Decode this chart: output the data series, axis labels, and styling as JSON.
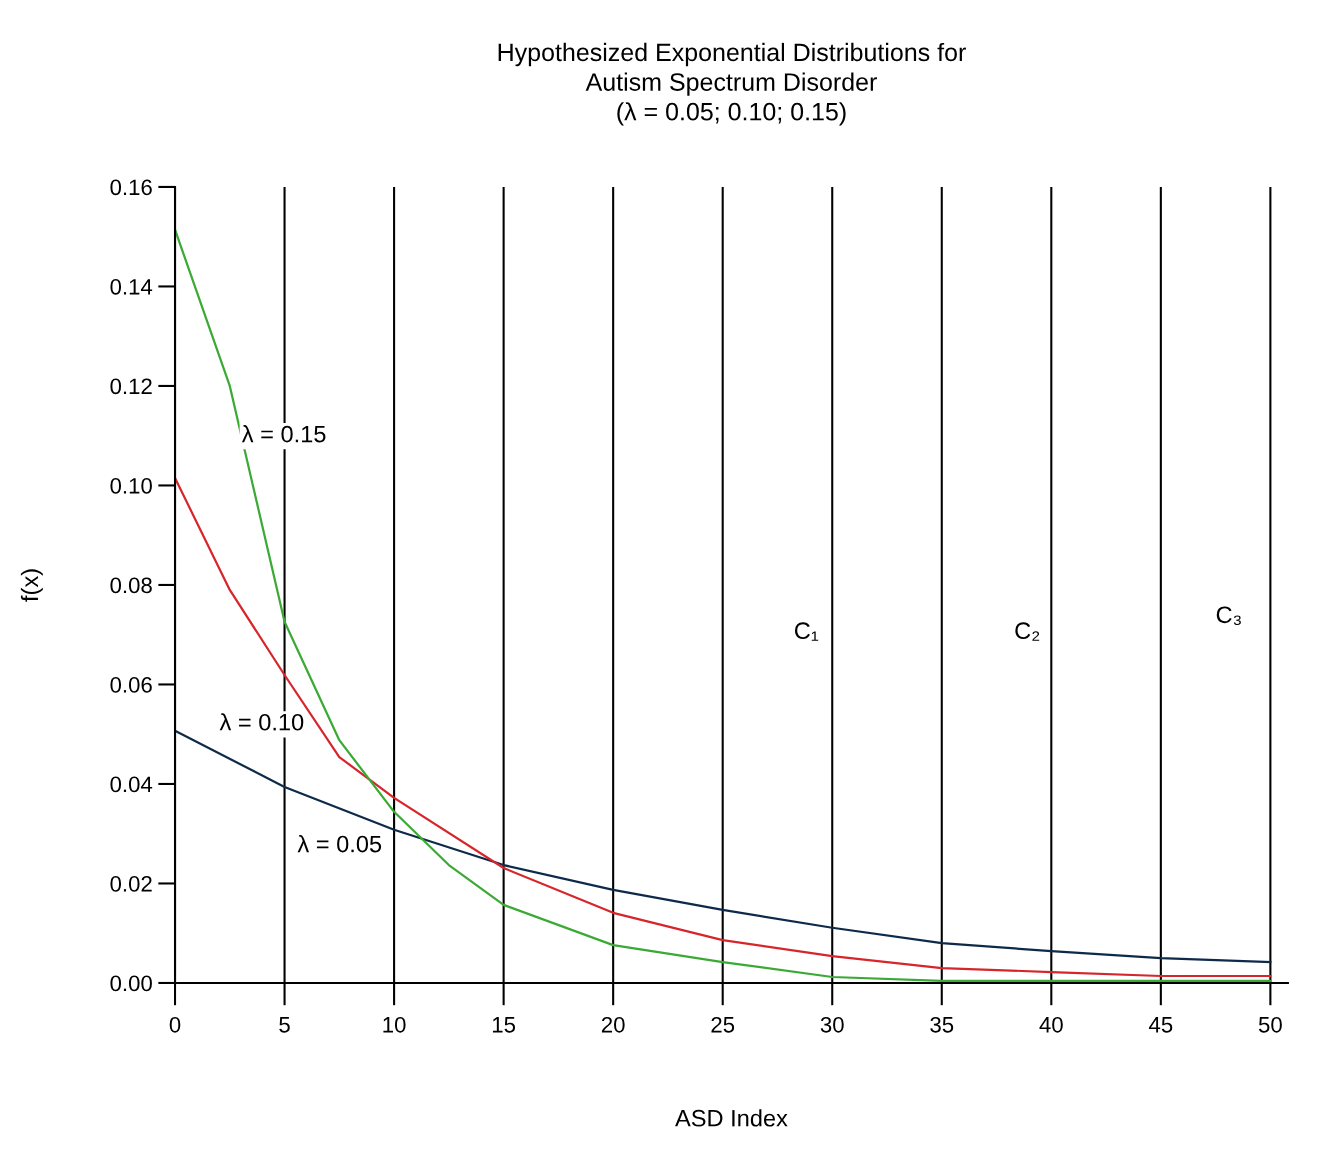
{
  "chart_data": {
    "type": "line",
    "title": "Hypothesized Exponential Distributions for\nAutism Spectrum Disorder\n(λ = 0.05; 0.10; 0.15)",
    "xlabel": "ASD Index",
    "ylabel": "f(x)",
    "series": [
      {
        "name": "λ = 0.05",
        "color": "#0d2a4a",
        "x": [
          0,
          5,
          10,
          15,
          20,
          25,
          30,
          35,
          40,
          45,
          50
        ],
        "values": [
          0.0507,
          0.0394,
          0.0308,
          0.0237,
          0.0187,
          0.0147,
          0.0111,
          0.008,
          0.0064,
          0.005,
          0.0042
        ]
      },
      {
        "name": "λ = 0.10",
        "color": "#d7262b",
        "x": [
          0,
          2.5,
          5,
          7.5,
          10,
          15,
          20,
          25,
          30,
          35,
          40,
          45,
          50
        ],
        "values": [
          0.1015,
          0.079,
          0.0619,
          0.0454,
          0.0372,
          0.0231,
          0.0141,
          0.0086,
          0.0054,
          0.003,
          0.0022,
          0.0014,
          0.0014
        ]
      },
      {
        "name": "λ = 0.15",
        "color": "#3aaa35",
        "x": [
          0,
          2.5,
          5,
          7.5,
          10,
          12.5,
          15,
          20,
          25,
          30,
          35,
          40,
          45,
          50
        ],
        "values": [
          0.1514,
          0.12,
          0.0726,
          0.0488,
          0.0344,
          0.0237,
          0.0157,
          0.0076,
          0.0042,
          0.0012,
          0.0004,
          0.0004,
          0.0004,
          0.0004
        ]
      }
    ],
    "annotations": [
      "C₁",
      "C₂",
      "C₃"
    ],
    "xlim": [
      0,
      50.8
    ],
    "xticks": [
      0,
      5,
      10,
      15,
      20,
      25,
      30,
      35,
      40,
      45,
      50
    ],
    "ylim": [
      0,
      0.16
    ],
    "yticks": [
      {
        "value": 0,
        "label": "0.00"
      },
      {
        "value": 0.02,
        "label": "0.02"
      },
      {
        "value": 0.04,
        "label": "0.04"
      },
      {
        "value": 0.06,
        "label": "0.06"
      },
      {
        "value": 0.08,
        "label": "0.08"
      },
      {
        "value": 0.1,
        "label": "0.10"
      },
      {
        "value": 0.12,
        "label": "0.12"
      },
      {
        "value": 0.14,
        "label": "0.14"
      },
      {
        "value": 0.16,
        "label": "0.16"
      }
    ],
    "grid": "x",
    "legend": false,
    "marker": "none",
    "line_style": "solid"
  }
}
